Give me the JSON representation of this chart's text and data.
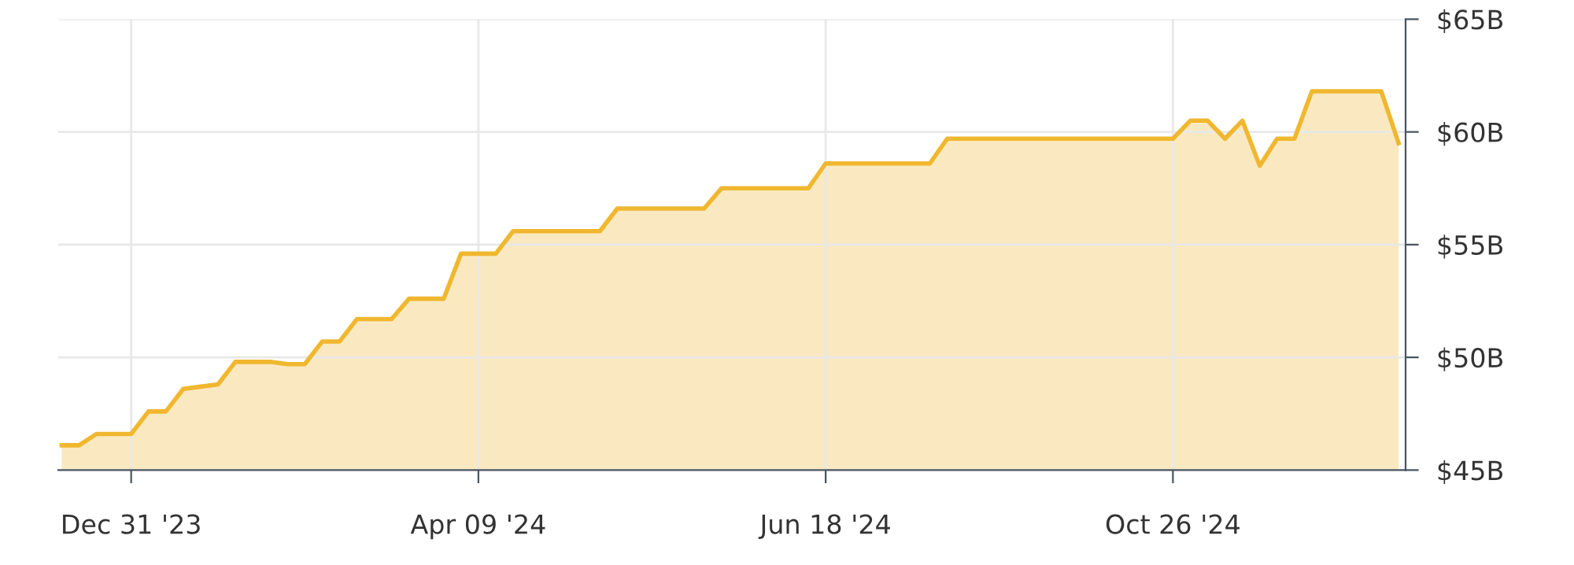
{
  "chart_data": {
    "type": "area",
    "categories": [
      null,
      null,
      null,
      null,
      "Dec 31 '23",
      null,
      null,
      null,
      null,
      null,
      null,
      null,
      null,
      null,
      null,
      null,
      null,
      null,
      null,
      null,
      null,
      null,
      null,
      null,
      "Apr 09 '24",
      null,
      null,
      null,
      null,
      null,
      null,
      null,
      null,
      null,
      null,
      null,
      null,
      null,
      null,
      null,
      null,
      null,
      null,
      null,
      "Jun 18 '24",
      null,
      null,
      null,
      null,
      null,
      null,
      null,
      null,
      null,
      null,
      null,
      null,
      null,
      null,
      null,
      null,
      null,
      null,
      null,
      "Oct 26 '24",
      null,
      null,
      null,
      null,
      null,
      null,
      null,
      null,
      null,
      null,
      null,
      null,
      null
    ],
    "series": [
      {
        "color": "#f0b72f",
        "values": [
          46.1,
          46.1,
          46.6,
          46.6,
          46.6,
          47.6,
          47.6,
          48.6,
          48.7,
          48.8,
          49.8,
          49.8,
          49.8,
          49.7,
          49.7,
          50.7,
          50.7,
          51.7,
          51.7,
          51.7,
          52.6,
          52.6,
          52.6,
          54.6,
          54.6,
          54.6,
          55.6,
          55.6,
          55.6,
          55.6,
          55.6,
          55.6,
          56.6,
          56.6,
          56.6,
          56.6,
          56.6,
          56.6,
          57.5,
          57.5,
          57.5,
          57.5,
          57.5,
          57.5,
          58.6,
          58.6,
          58.6,
          58.6,
          58.6,
          58.6,
          58.6,
          59.7,
          59.7,
          59.7,
          59.7,
          59.7,
          59.7,
          59.7,
          59.7,
          59.7,
          59.7,
          59.7,
          59.7,
          59.7,
          59.7,
          60.5,
          60.5,
          59.7,
          60.5,
          58.5,
          59.7,
          59.7,
          61.8,
          61.8,
          61.8,
          61.8,
          61.8,
          59.5
        ]
      }
    ],
    "ylim": [
      45,
      65
    ],
    "yticks": [
      {
        "value": 45,
        "label": "$45B"
      },
      {
        "value": 50,
        "label": "$50B"
      },
      {
        "value": 55,
        "label": "$55B"
      },
      {
        "value": 60,
        "label": "$60B"
      },
      {
        "value": 65,
        "label": "$65B"
      }
    ],
    "grid": true
  }
}
